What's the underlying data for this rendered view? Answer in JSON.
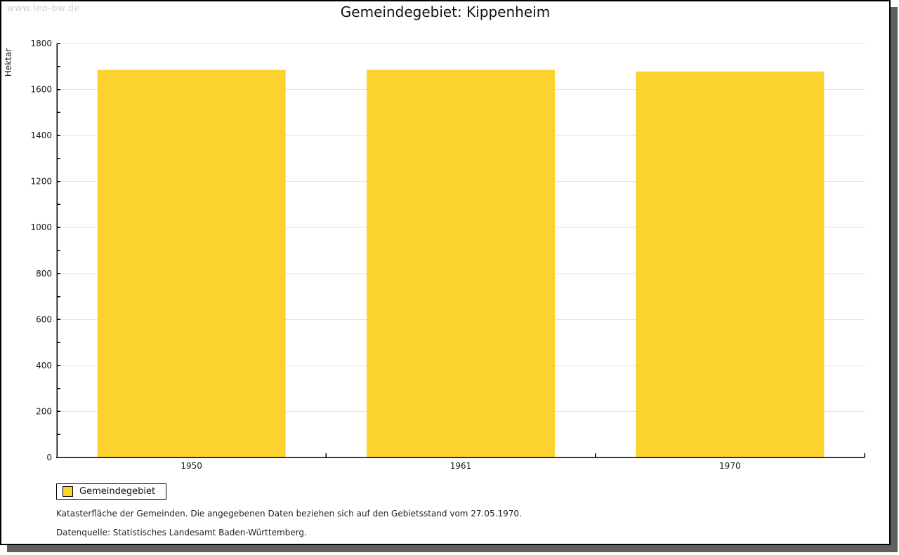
{
  "watermark": "www.leo-bw.de",
  "title": "Gemeindegebiet: Kippenheim",
  "chart_data": {
    "type": "bar",
    "title": "Gemeindegebiet: Kippenheim",
    "categories": [
      "1950",
      "1961",
      "1970"
    ],
    "series": [
      {
        "name": "Gemeindegebiet",
        "values": [
          1685,
          1685,
          1678
        ]
      }
    ],
    "xlabel": "",
    "ylabel": "Hektar",
    "ylim": [
      0,
      1800
    ],
    "ytick_step": 200,
    "minor_tick_step": 100,
    "grid": true,
    "legend_position": "bottom-left"
  },
  "legend": {
    "label": "Gemeindegebiet"
  },
  "footer": {
    "line1": "Katasterfläche der Gemeinden. Die angegebenen Daten beziehen sich auf den Gebietsstand vom 27.05.1970.",
    "line2": "Datenquelle: Statistisches Landesamt Baden-Württemberg."
  },
  "colors": {
    "bar": "#FCD32E",
    "grid": "#e2e2e2",
    "axis": "#000000",
    "text": "#1a1a1a",
    "watermark": "#d0d0d0",
    "shadow": "#5f5f5f"
  }
}
